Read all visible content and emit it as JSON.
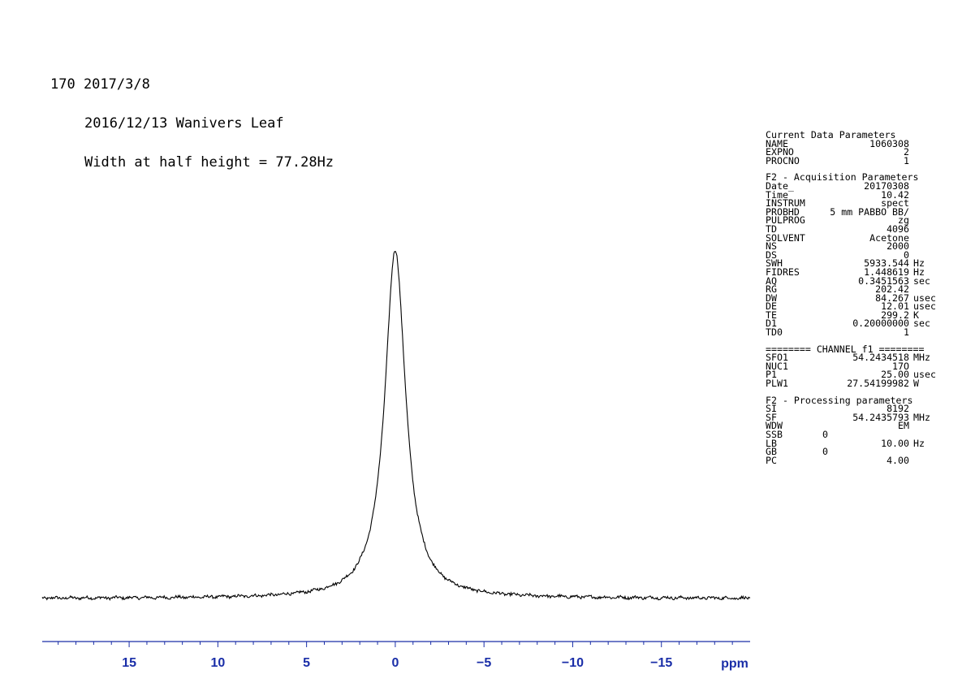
{
  "header": {
    "line1": "170 2017/3/8",
    "line2": "2016/12/13 Wanivers Leaf",
    "line3": "Width at half height = 77.28Hz"
  },
  "params": [
    {
      "title": "Current Data Parameters",
      "rows": [
        {
          "name": "NAME",
          "value": "1060308",
          "unit": ""
        },
        {
          "name": "EXPNO",
          "value": "2",
          "unit": ""
        },
        {
          "name": "PROCNO",
          "value": "1",
          "unit": ""
        }
      ]
    },
    {
      "title": "F2 - Acquisition Parameters",
      "rows": [
        {
          "name": "Date_",
          "value": "20170308",
          "unit": ""
        },
        {
          "name": "Time",
          "value": "10.42",
          "unit": ""
        },
        {
          "name": "INSTRUM",
          "value": "spect",
          "unit": ""
        },
        {
          "name": "PROBHD",
          "value": "5 mm PABBO BB/",
          "unit": ""
        },
        {
          "name": "PULPROG",
          "value": "zg",
          "unit": ""
        },
        {
          "name": "TD",
          "value": "4096",
          "unit": ""
        },
        {
          "name": "SOLVENT",
          "value": "Acetone",
          "unit": ""
        },
        {
          "name": "NS",
          "value": "2000",
          "unit": ""
        },
        {
          "name": "DS",
          "value": "0",
          "unit": ""
        },
        {
          "name": "SWH",
          "value": "5933.544",
          "unit": "Hz"
        },
        {
          "name": "FIDRES",
          "value": "1.448619",
          "unit": "Hz"
        },
        {
          "name": "AQ",
          "value": "0.3451563",
          "unit": "sec"
        },
        {
          "name": "RG",
          "value": "202.42",
          "unit": ""
        },
        {
          "name": "DW",
          "value": "84.267",
          "unit": "usec"
        },
        {
          "name": "DE",
          "value": "12.01",
          "unit": "usec"
        },
        {
          "name": "TE",
          "value": "299.2",
          "unit": "K"
        },
        {
          "name": "D1",
          "value": "0.20000000",
          "unit": "sec"
        },
        {
          "name": "TD0",
          "value": "1",
          "unit": ""
        }
      ]
    },
    {
      "title": "======== CHANNEL f1 ========",
      "rows": [
        {
          "name": "SFO1",
          "value": "54.2434518",
          "unit": "MHz"
        },
        {
          "name": "NUC1",
          "value": "17O",
          "unit": ""
        },
        {
          "name": "P1",
          "value": "25.00",
          "unit": "usec"
        },
        {
          "name": "PLW1",
          "value": "27.54199982",
          "unit": "W"
        }
      ]
    },
    {
      "title": "F2 - Processing parameters",
      "rows": [
        {
          "name": "SI",
          "value": "8192",
          "unit": ""
        },
        {
          "name": "SF",
          "value": "54.2435793",
          "unit": "MHz"
        },
        {
          "name": "WDW",
          "value": "EM",
          "unit": ""
        },
        {
          "name": "SSB",
          "value": "0",
          "unit": "",
          "short": true
        },
        {
          "name": "LB",
          "value": "10.00",
          "unit": "Hz"
        },
        {
          "name": "GB",
          "value": "0",
          "unit": "",
          "short": true
        },
        {
          "name": "PC",
          "value": "4.00",
          "unit": ""
        }
      ]
    }
  ],
  "chart_data": {
    "type": "line",
    "xlabel": "ppm",
    "x_reversed": true,
    "xlim": [
      20,
      -20
    ],
    "ticks": [
      15,
      10,
      5,
      0,
      -5,
      -10,
      -15
    ],
    "tick_labels": [
      "15",
      "10",
      "5",
      "0",
      "−5",
      "−10",
      "−15"
    ],
    "peak": {
      "position": 0.0,
      "fwhm_ppm": 1.42,
      "height": 1.0
    },
    "baseline_level": 0.0,
    "axis_color": "#1a2ea8"
  }
}
